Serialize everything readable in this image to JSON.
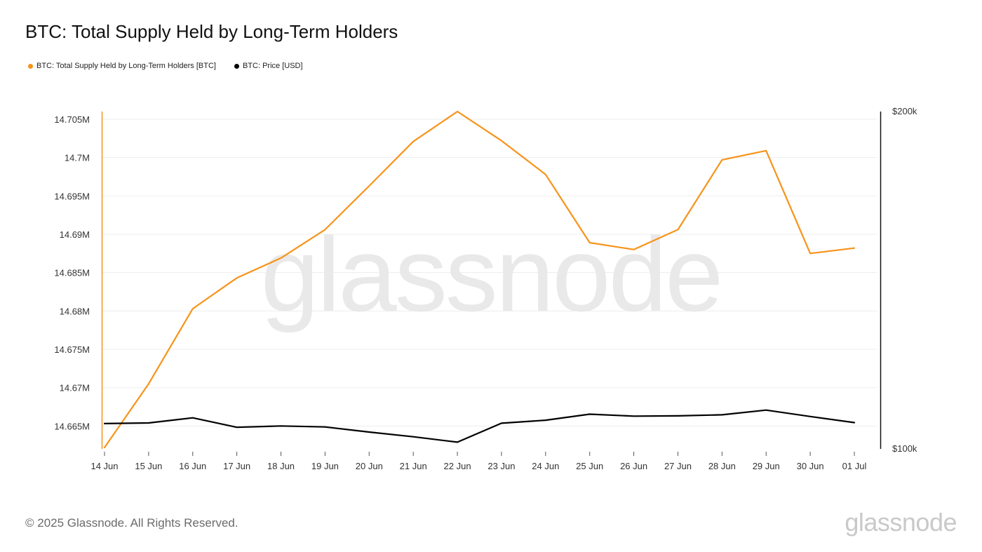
{
  "title": "BTC: Total Supply Held by Long-Term Holders",
  "legend": [
    {
      "label": "BTC: Total Supply Held by Long-Term Holders [BTC]",
      "color": "#f7931a"
    },
    {
      "label": "BTC: Price [USD]",
      "color": "#000000"
    }
  ],
  "watermark": "glassnode",
  "footer": "© 2025 Glassnode. All Rights Reserved.",
  "brand": "glassnode",
  "chart_data": {
    "type": "line",
    "title": "BTC: Total Supply Held by Long-Term Holders",
    "x": [
      "14 Jun",
      "15 Jun",
      "16 Jun",
      "17 Jun",
      "18 Jun",
      "19 Jun",
      "20 Jun",
      "21 Jun",
      "22 Jun",
      "23 Jun",
      "24 Jun",
      "25 Jun",
      "26 Jun",
      "27 Jun",
      "28 Jun",
      "29 Jun",
      "30 Jun",
      "01 Jul"
    ],
    "y_left": {
      "ylim": [
        14.6622,
        14.706
      ],
      "ticks": [
        14.665,
        14.67,
        14.675,
        14.68,
        14.685,
        14.69,
        14.695,
        14.7,
        14.705
      ],
      "tick_labels": [
        "14.665M",
        "14.67M",
        "14.675M",
        "14.68M",
        "14.685M",
        "14.69M",
        "14.695M",
        "14.7M",
        "14.705M"
      ]
    },
    "y_right": {
      "ylim": [
        100000,
        200000
      ],
      "ticks": [
        100000,
        200000
      ],
      "tick_labels": [
        "$100k",
        "$200k"
      ]
    },
    "series": [
      {
        "name": "BTC: Total Supply Held by Long-Term Holders [BTC]",
        "axis": "left",
        "color": "#f7931a",
        "values": [
          14.6622,
          14.6705,
          14.6803,
          14.6843,
          14.6869,
          14.6906,
          14.6963,
          14.7021,
          14.706,
          14.7022,
          14.6978,
          14.6889,
          14.688,
          14.6906,
          14.6997,
          14.7009,
          14.6875,
          14.6882
        ]
      },
      {
        "name": "BTC: Price [USD]",
        "axis": "right",
        "color": "#000000",
        "values": [
          107500,
          107700,
          109200,
          106400,
          106800,
          106500,
          105000,
          103600,
          102000,
          107600,
          108500,
          110300,
          109700,
          109800,
          110100,
          111500,
          109600,
          107800
        ]
      }
    ],
    "grid": true,
    "legend_position": "top-left"
  }
}
